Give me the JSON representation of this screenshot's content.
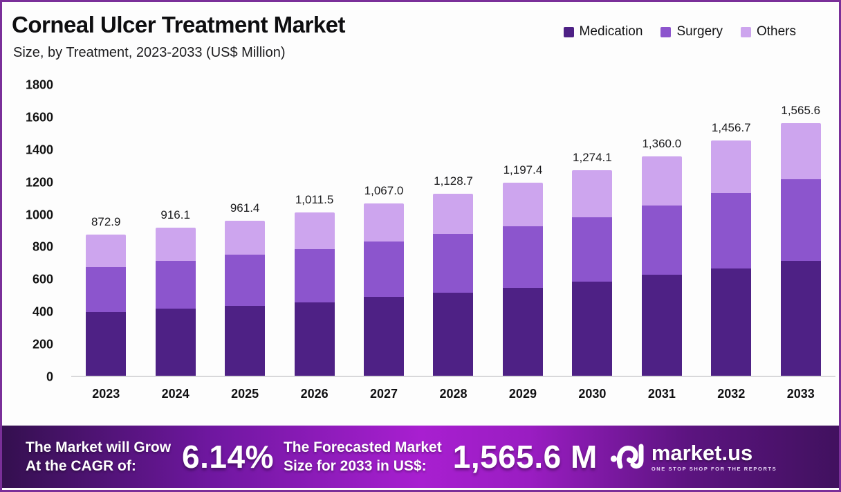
{
  "header": {
    "title": "Corneal Ulcer Treatment Market",
    "subtitle": "Size, by Treatment, 2023-2033 (US$ Million)"
  },
  "chart_data": {
    "type": "bar",
    "stacked": true,
    "title": "Corneal Ulcer Treatment Market Size, by Treatment, 2023-2033 (US$ Million)",
    "categories": [
      "2023",
      "2024",
      "2025",
      "2026",
      "2027",
      "2028",
      "2029",
      "2030",
      "2031",
      "2032",
      "2033"
    ],
    "series": [
      {
        "name": "Medication",
        "color": "#4e2185",
        "values": [
          395,
          415,
          432,
          455,
          487,
          515,
          545,
          583,
          627,
          665,
          712
        ]
      },
      {
        "name": "Surgery",
        "color": "#8c55cd",
        "values": [
          278,
          296,
          318,
          328,
          343,
          362,
          382,
          400,
          428,
          466,
          504
        ]
      },
      {
        "name": "Others",
        "color": "#cda5ee",
        "values": [
          199.9,
          205.1,
          211.4,
          228.5,
          237.0,
          251.7,
          270.4,
          291.1,
          305.0,
          325.7,
          349.6
        ]
      }
    ],
    "totals": [
      872.9,
      916.1,
      961.4,
      1011.5,
      1067.0,
      1128.7,
      1197.4,
      1274.1,
      1360.0,
      1456.7,
      1565.6
    ],
    "total_labels": [
      "872.9",
      "916.1",
      "961.4",
      "1,011.5",
      "1,067.0",
      "1,128.7",
      "1,197.4",
      "1,274.1",
      "1,360.0",
      "1,456.7",
      "1,565.6"
    ],
    "xlabel": "",
    "ylabel": "",
    "ylim": [
      0,
      1800
    ],
    "yticks": [
      0,
      200,
      400,
      600,
      800,
      1000,
      1200,
      1400,
      1600,
      1800
    ],
    "grid": false,
    "legend_position": "top-right"
  },
  "banner": {
    "cagr_label": [
      "The Market will Grow",
      "At the CAGR of:"
    ],
    "cagr_value": "6.14%",
    "forecast_label": [
      "The Forecasted Market",
      "Size for 2033 in US$:"
    ],
    "forecast_value": "1,565.6 M",
    "logo_text": "market.us",
    "logo_tagline": "ONE STOP SHOP FOR THE REPORTS"
  },
  "colors": {
    "frame_border": "#7a2f99",
    "background": "#fdfdfd",
    "axis_line": "#d8d8da",
    "banner_gradient": [
      "#34104f",
      "#a81fd0",
      "#41115f"
    ]
  }
}
